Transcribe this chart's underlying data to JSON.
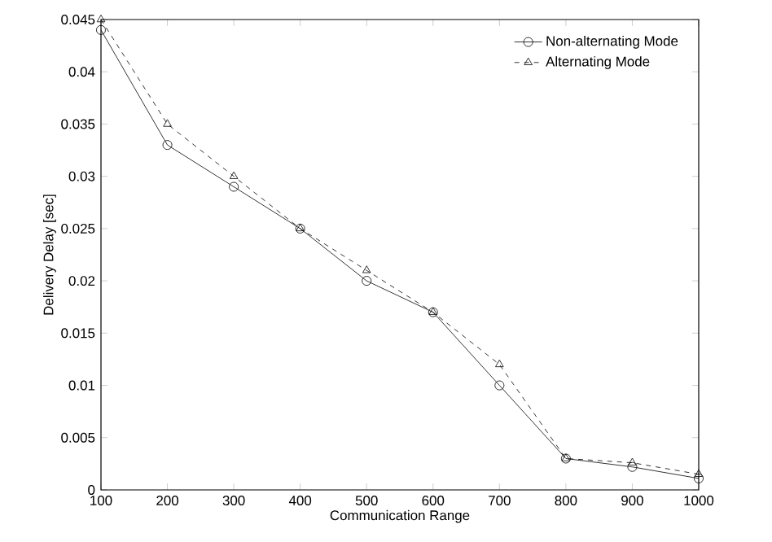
{
  "chart_data": {
    "type": "line",
    "xlabel": "Communication Range",
    "ylabel": "Delivery Delay [sec]",
    "x": [
      100,
      200,
      300,
      400,
      500,
      600,
      700,
      800,
      900,
      1000
    ],
    "series": [
      {
        "name": "Non-alternating Mode",
        "color": "#000000",
        "marker": "circle",
        "line_style": "solid",
        "values": [
          0.044,
          0.033,
          0.029,
          0.025,
          0.02,
          0.017,
          0.01,
          0.003,
          0.0022,
          0.0011
        ]
      },
      {
        "name": "Alternating Mode",
        "color": "#000000",
        "marker": "triangle",
        "line_style": "dashed",
        "values": [
          0.045,
          0.035,
          0.03,
          0.025,
          0.021,
          0.017,
          0.012,
          0.003,
          0.0026,
          0.0015
        ]
      }
    ],
    "xlim": [
      100,
      1000
    ],
    "ylim": [
      0,
      0.045
    ],
    "xticks": [
      100,
      200,
      300,
      400,
      500,
      600,
      700,
      800,
      900,
      1000
    ],
    "yticks": [
      0,
      0.005,
      0.01,
      0.015,
      0.02,
      0.025,
      0.03,
      0.035,
      0.04,
      0.045
    ],
    "grid": false,
    "legend": "top right"
  }
}
